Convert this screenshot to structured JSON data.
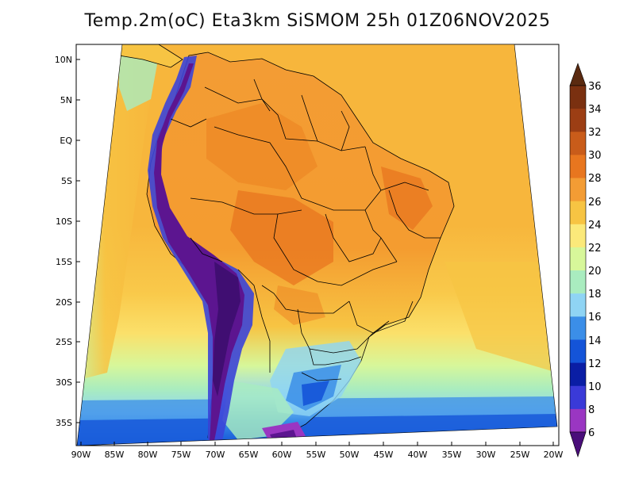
{
  "title": "Temp.2m(oC) Eta3km SiSMOM 25h 01Z06NOV2025",
  "lat_labels": [
    "10N",
    "5N",
    "EQ",
    "5S",
    "10S",
    "15S",
    "20S",
    "25S",
    "30S",
    "35S"
  ],
  "lon_labels": [
    "90W",
    "85W",
    "80W",
    "75W",
    "70W",
    "65W",
    "60W",
    "55W",
    "50W",
    "45W",
    "40W",
    "35W",
    "30W",
    "25W",
    "20W"
  ],
  "colorbar": {
    "labels": [
      "36",
      "34",
      "32",
      "30",
      "28",
      "26",
      "24",
      "22",
      "20",
      "18",
      "16",
      "14",
      "12",
      "10",
      "8",
      "6"
    ],
    "colors": [
      "#7a3010",
      "#9c3e14",
      "#c95c1a",
      "#e8761f",
      "#f39c34",
      "#f7c443",
      "#fbe97a",
      "#d7f79a",
      "#a9ecbf",
      "#8fd4f4",
      "#3b8ee8",
      "#1454d8",
      "#0a1ea5",
      "#3a3ad8",
      "#9a36c2",
      "#5c0f8a"
    ],
    "top_arrow_color": "#5a2a10",
    "bottom_arrow_color": "#4a0e7a"
  },
  "palette": {
    "ocean_warm": "#f5b43c",
    "ocean_mid": "#fbe06a",
    "ocean_cool": "#cdf29a",
    "ocean_cold": "#8fd4f4",
    "land_hot": "#ee7e22",
    "land_warm": "#f39c34",
    "andes": "#5c1590",
    "andes_edge": "#3b44d8",
    "south_cold": "#2a58e0",
    "border": "#000000"
  }
}
